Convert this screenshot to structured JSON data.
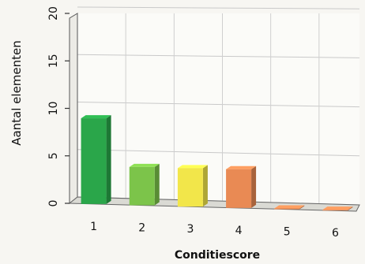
{
  "chart_data": {
    "type": "bar",
    "title": "",
    "xlabel": "Conditiescore",
    "ylabel": "Aantal elementen",
    "categories": [
      "1",
      "2",
      "3",
      "4",
      "5",
      "6"
    ],
    "values": [
      9,
      4,
      4,
      4,
      0,
      0
    ],
    "ylim": [
      0,
      20
    ],
    "yticks": [
      "0",
      "5",
      "10",
      "15",
      "20"
    ],
    "grid": true,
    "legend": "none",
    "colors": [
      "#2aa64a",
      "#7cc44a",
      "#f2e64a",
      "#e98a54",
      "#e98a54",
      "#e98a54"
    ],
    "view": "3d"
  }
}
